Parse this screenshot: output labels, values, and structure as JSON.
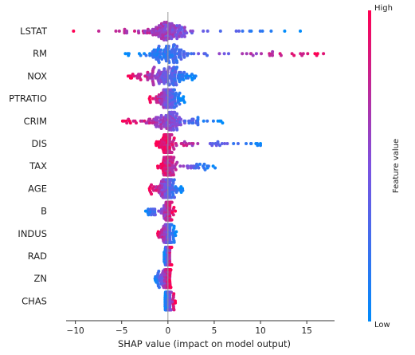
{
  "chart_data": {
    "type": "scatter",
    "subtype": "shap-beeswarm",
    "title": "",
    "xlabel": "SHAP value (impact on model output)",
    "xlim": [
      -11,
      18
    ],
    "xticks": [
      -10,
      -5,
      0,
      5,
      10,
      15
    ],
    "xtick_labels": [
      "−10",
      "−5",
      "0",
      "5",
      "10",
      "15"
    ],
    "colorbar": {
      "label": "Feature value",
      "high_label": "High",
      "low_label": "Low",
      "low_color": "#008bfb",
      "mid_color": "#7c52e0",
      "high_color": "#ff0052"
    },
    "grid": false,
    "features": [
      {
        "name": "LSTAT",
        "shap_min": -10.2,
        "shap_max": 14.3,
        "high_side": "negative"
      },
      {
        "name": "RM",
        "shap_min": -4.6,
        "shap_max": 16.8,
        "high_side": "positive"
      },
      {
        "name": "NOX",
        "shap_min": -4.3,
        "shap_max": 3.0,
        "high_side": "negative"
      },
      {
        "name": "PTRATIO",
        "shap_min": -2.0,
        "shap_max": 1.8,
        "high_side": "negative"
      },
      {
        "name": "CRIM",
        "shap_min": -4.9,
        "shap_max": 5.9,
        "high_side": "negative"
      },
      {
        "name": "DIS",
        "shap_min": -1.3,
        "shap_max": 10.0,
        "high_side": "negative"
      },
      {
        "name": "TAX",
        "shap_min": -1.1,
        "shap_max": 5.1,
        "high_side": "negative"
      },
      {
        "name": "AGE",
        "shap_min": -2.0,
        "shap_max": 1.6,
        "high_side": "negative"
      },
      {
        "name": "B",
        "shap_min": -2.4,
        "shap_max": 0.8,
        "high_side": "positive"
      },
      {
        "name": "INDUS",
        "shap_min": -1.1,
        "shap_max": 0.9,
        "high_side": "negative"
      },
      {
        "name": "RAD",
        "shap_min": -0.4,
        "shap_max": 0.4,
        "high_side": "positive"
      },
      {
        "name": "ZN",
        "shap_min": -1.4,
        "shap_max": 0.3,
        "high_side": "positive"
      },
      {
        "name": "CHAS",
        "shap_min": -0.3,
        "shap_max": 0.8,
        "high_side": "positive"
      }
    ]
  }
}
